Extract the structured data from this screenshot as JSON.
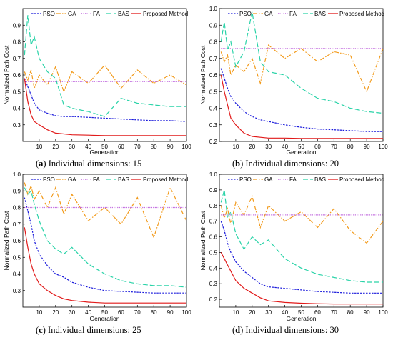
{
  "figure": {
    "legend_series": [
      "PSO",
      "GA",
      "FA",
      "BAS",
      "Proposed Method"
    ],
    "colors": {
      "PSO": "#1a1adb",
      "GA": "#f29a1a",
      "FA": "#b44bd8",
      "BAS": "#2ad3a8",
      "Proposed Method": "#e11a1a"
    },
    "dash_styles": {
      "PSO": "2.5,1.5",
      "GA": "6,2,1.5,2",
      "FA": "1,1.5",
      "BAS": "7,3",
      "Proposed Method": ""
    }
  },
  "chart_data": [
    {
      "type": "line",
      "caption_letter": "a",
      "caption_text": " Individual dimensions: 15",
      "xlabel": "Generation",
      "ylabel": "Normalized Path Cost",
      "xlim": [
        0,
        100
      ],
      "ylim": [
        0.2,
        1.0
      ],
      "xticks": [
        10,
        20,
        30,
        40,
        50,
        60,
        70,
        80,
        90,
        100
      ],
      "xtick_labels": [
        "10",
        "20",
        "30",
        "40",
        "50",
        "60",
        "70",
        "80",
        "90",
        "100"
      ],
      "yticks": [
        0.3,
        0.4,
        0.5,
        0.6,
        0.7,
        0.8,
        0.9
      ],
      "ytick_labels": [
        "0.3",
        "0.4",
        "0.5",
        "0.6",
        "0.7",
        "0.8",
        "0.9"
      ],
      "grid": false,
      "legend_position": "top",
      "x": [
        1,
        3,
        5,
        7,
        10,
        15,
        20,
        25,
        30,
        40,
        50,
        60,
        70,
        80,
        90,
        100
      ],
      "series": [
        {
          "name": "PSO",
          "values": [
            0.58,
            0.53,
            0.48,
            0.43,
            0.39,
            0.37,
            0.355,
            0.35,
            0.35,
            0.345,
            0.34,
            0.335,
            0.33,
            0.325,
            0.325,
            0.32
          ]
        },
        {
          "name": "GA",
          "values": [
            0.62,
            0.57,
            0.63,
            0.52,
            0.6,
            0.54,
            0.65,
            0.5,
            0.62,
            0.55,
            0.66,
            0.52,
            0.63,
            0.55,
            0.6,
            0.54
          ]
        },
        {
          "name": "FA",
          "values": [
            0.56,
            0.56,
            0.56,
            0.56,
            0.56,
            0.56,
            0.56,
            0.56,
            0.56,
            0.56,
            0.56,
            0.56,
            0.56,
            0.56,
            0.56,
            0.56
          ]
        },
        {
          "name": "BAS",
          "values": [
            0.72,
            0.96,
            0.78,
            0.83,
            0.7,
            0.62,
            0.58,
            0.42,
            0.4,
            0.38,
            0.35,
            0.46,
            0.43,
            0.42,
            0.41,
            0.41
          ]
        },
        {
          "name": "Proposed Method",
          "values": [
            0.58,
            0.44,
            0.36,
            0.32,
            0.3,
            0.27,
            0.25,
            0.245,
            0.24,
            0.238,
            0.235,
            0.235,
            0.235,
            0.235,
            0.235,
            0.235
          ]
        }
      ]
    },
    {
      "type": "line",
      "caption_letter": "b",
      "caption_text": " Individual dimensions: 20",
      "xlabel": "Generation",
      "ylabel": "Normalized Path Cost",
      "xlim": [
        0,
        100
      ],
      "ylim": [
        0.2,
        1.0
      ],
      "xticks": [
        10,
        20,
        30,
        40,
        50,
        60,
        70,
        80,
        90,
        100
      ],
      "xtick_labels": [
        "10",
        "20",
        "30",
        "40",
        "50",
        "60",
        "70",
        "80",
        "90",
        "100"
      ],
      "yticks": [
        0.2,
        0.3,
        0.4,
        0.5,
        0.6,
        0.7,
        0.8,
        0.9,
        1.0
      ],
      "ytick_labels": [
        "0.2",
        "0.3",
        "0.4",
        "0.5",
        "0.6",
        "0.7",
        "0.8",
        "0.9",
        "1.0"
      ],
      "grid": false,
      "legend_position": "top",
      "x": [
        1,
        3,
        5,
        7,
        10,
        15,
        20,
        25,
        30,
        40,
        50,
        60,
        70,
        80,
        90,
        100
      ],
      "series": [
        {
          "name": "PSO",
          "values": [
            0.64,
            0.58,
            0.52,
            0.47,
            0.43,
            0.38,
            0.35,
            0.33,
            0.32,
            0.3,
            0.285,
            0.275,
            0.27,
            0.265,
            0.26,
            0.26
          ]
        },
        {
          "name": "GA",
          "values": [
            0.74,
            0.68,
            0.72,
            0.6,
            0.66,
            0.62,
            0.7,
            0.55,
            0.78,
            0.7,
            0.76,
            0.68,
            0.74,
            0.72,
            0.5,
            0.76
          ]
        },
        {
          "name": "FA",
          "values": [
            0.76,
            0.76,
            0.76,
            0.76,
            0.76,
            0.76,
            0.76,
            0.76,
            0.76,
            0.76,
            0.76,
            0.76,
            0.76,
            0.76,
            0.76,
            0.76
          ]
        },
        {
          "name": "BAS",
          "values": [
            0.8,
            0.92,
            0.75,
            0.8,
            0.65,
            0.74,
            0.98,
            0.68,
            0.62,
            0.6,
            0.52,
            0.46,
            0.44,
            0.4,
            0.38,
            0.37
          ]
        },
        {
          "name": "Proposed Method",
          "values": [
            0.6,
            0.5,
            0.42,
            0.34,
            0.3,
            0.25,
            0.23,
            0.225,
            0.22,
            0.22,
            0.218,
            0.218,
            0.218,
            0.218,
            0.218,
            0.218
          ]
        }
      ]
    },
    {
      "type": "line",
      "caption_letter": "c",
      "caption_text": " Individual dimensions: 25",
      "xlabel": "Generation",
      "ylabel": "Normalized Path Cost",
      "xlim": [
        0,
        100
      ],
      "ylim": [
        0.2,
        1.0
      ],
      "xticks": [
        10,
        20,
        30,
        40,
        50,
        60,
        70,
        80,
        90,
        100
      ],
      "xtick_labels": [
        "10",
        "20",
        "30",
        "40",
        "50",
        "60",
        "70",
        "80",
        "90",
        "100"
      ],
      "yticks": [
        0.3,
        0.4,
        0.5,
        0.6,
        0.7,
        0.8,
        0.9,
        1.0
      ],
      "ytick_labels": [
        "0.3",
        "0.4",
        "0.5",
        "0.6",
        "0.7",
        "0.8",
        "0.9",
        "1.0"
      ],
      "grid": false,
      "legend_position": "top",
      "x": [
        1,
        3,
        5,
        7,
        10,
        15,
        20,
        25,
        30,
        40,
        50,
        60,
        70,
        80,
        90,
        100
      ],
      "series": [
        {
          "name": "PSO",
          "values": [
            0.86,
            0.78,
            0.7,
            0.6,
            0.52,
            0.45,
            0.4,
            0.38,
            0.35,
            0.32,
            0.3,
            0.295,
            0.29,
            0.285,
            0.285,
            0.285
          ]
        },
        {
          "name": "GA",
          "values": [
            0.95,
            0.88,
            0.93,
            0.85,
            0.9,
            0.8,
            0.92,
            0.76,
            0.88,
            0.72,
            0.8,
            0.7,
            0.86,
            0.62,
            0.92,
            0.72
          ]
        },
        {
          "name": "FA",
          "values": [
            0.8,
            0.8,
            0.8,
            0.8,
            0.8,
            0.8,
            0.8,
            0.8,
            0.8,
            0.8,
            0.8,
            0.8,
            0.8,
            0.8,
            0.8,
            0.8
          ]
        },
        {
          "name": "BAS",
          "values": [
            0.92,
            0.88,
            0.9,
            0.82,
            0.72,
            0.6,
            0.55,
            0.52,
            0.56,
            0.46,
            0.4,
            0.36,
            0.34,
            0.33,
            0.33,
            0.32
          ]
        },
        {
          "name": "Proposed Method",
          "values": [
            0.68,
            0.56,
            0.46,
            0.4,
            0.34,
            0.3,
            0.27,
            0.25,
            0.24,
            0.23,
            0.225,
            0.225,
            0.225,
            0.225,
            0.225,
            0.225
          ]
        }
      ]
    },
    {
      "type": "line",
      "caption_letter": "d",
      "caption_text": " Individual dimensions: 30",
      "xlabel": "Generation",
      "ylabel": "Normalized Path Cost",
      "xlim": [
        0,
        100
      ],
      "ylim": [
        0.15,
        1.0
      ],
      "xticks": [
        10,
        20,
        30,
        40,
        50,
        60,
        70,
        80,
        90,
        100
      ],
      "xtick_labels": [
        "10",
        "20",
        "30",
        "40",
        "50",
        "60",
        "70",
        "80",
        "90",
        "100"
      ],
      "yticks": [
        0.2,
        0.3,
        0.4,
        0.5,
        0.6,
        0.7,
        0.8,
        0.9,
        1.0
      ],
      "ytick_labels": [
        "0.2",
        "0.3",
        "0.4",
        "0.5",
        "0.6",
        "0.7",
        "0.8",
        "0.9",
        "1.0"
      ],
      "grid": false,
      "legend_position": "top",
      "x": [
        1,
        3,
        5,
        7,
        10,
        15,
        20,
        25,
        30,
        40,
        50,
        60,
        70,
        80,
        90,
        100
      ],
      "series": [
        {
          "name": "PSO",
          "values": [
            0.7,
            0.64,
            0.56,
            0.5,
            0.44,
            0.38,
            0.34,
            0.3,
            0.28,
            0.27,
            0.26,
            0.25,
            0.245,
            0.24,
            0.24,
            0.24
          ]
        },
        {
          "name": "GA",
          "values": [
            0.8,
            0.72,
            0.78,
            0.68,
            0.82,
            0.74,
            0.86,
            0.66,
            0.8,
            0.7,
            0.76,
            0.66,
            0.78,
            0.64,
            0.56,
            0.7
          ]
        },
        {
          "name": "FA",
          "values": [
            0.74,
            0.74,
            0.74,
            0.74,
            0.74,
            0.74,
            0.74,
            0.74,
            0.74,
            0.74,
            0.74,
            0.74,
            0.74,
            0.74,
            0.74,
            0.74
          ]
        },
        {
          "name": "BAS",
          "values": [
            0.82,
            0.9,
            0.72,
            0.76,
            0.62,
            0.52,
            0.6,
            0.55,
            0.58,
            0.46,
            0.4,
            0.36,
            0.34,
            0.32,
            0.31,
            0.31
          ]
        },
        {
          "name": "Proposed Method",
          "values": [
            0.5,
            0.46,
            0.42,
            0.38,
            0.32,
            0.27,
            0.24,
            0.21,
            0.19,
            0.18,
            0.175,
            0.172,
            0.17,
            0.17,
            0.17,
            0.17
          ]
        }
      ]
    }
  ]
}
